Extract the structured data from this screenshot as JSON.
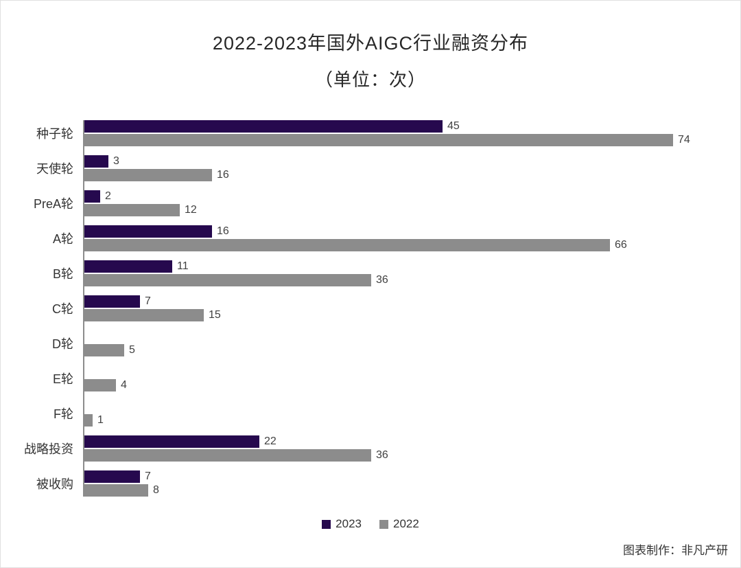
{
  "title": {
    "line1": "2022-2023年国外AIGC行业融资分布",
    "line2": "（单位：次）"
  },
  "chart_data": {
    "type": "bar",
    "orientation": "horizontal",
    "title": "2022-2023年国外AIGC行业融资分布",
    "subtitle": "（单位：次）",
    "unit": "次",
    "categories": [
      "种子轮",
      "天使轮",
      "PreA轮",
      "A轮",
      "B轮",
      "C轮",
      "D轮",
      "E轮",
      "F轮",
      "战略投资",
      "被收购"
    ],
    "series": [
      {
        "name": "2023",
        "color": "#26094e",
        "values": [
          45,
          3,
          2,
          16,
          11,
          7,
          0,
          0,
          0,
          22,
          7
        ]
      },
      {
        "name": "2022",
        "color": "#8c8c8c",
        "values": [
          74,
          16,
          12,
          66,
          36,
          15,
          5,
          4,
          1,
          36,
          8
        ]
      }
    ],
    "xlim": [
      0,
      80
    ],
    "grid": false,
    "value_labels": true,
    "legend_position": "bottom"
  },
  "legend": [
    {
      "label": "2023",
      "color": "#26094e"
    },
    {
      "label": "2022",
      "color": "#8c8c8c"
    }
  ],
  "footer": {
    "credit": "图表制作：非凡产研"
  }
}
